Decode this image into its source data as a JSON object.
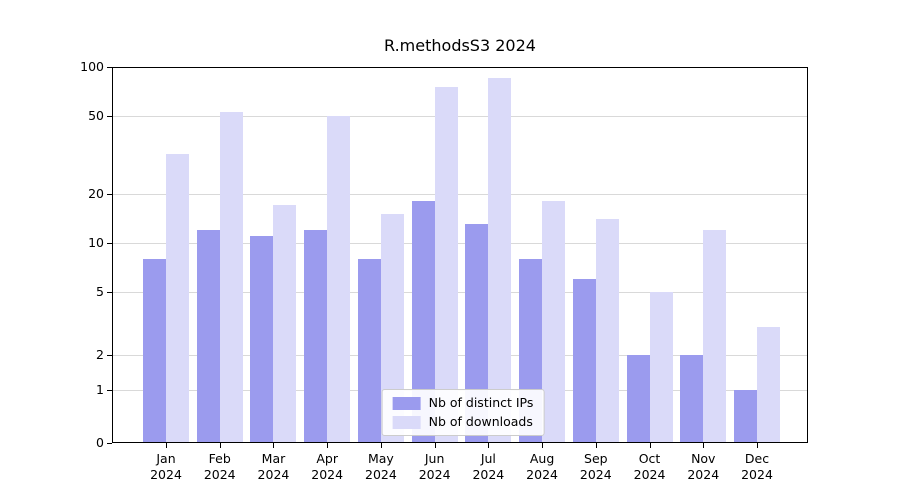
{
  "chart_data": {
    "type": "bar",
    "title": "R.methodsS3 2024",
    "categories": [
      "Jan",
      "Feb",
      "Mar",
      "Apr",
      "May",
      "Jun",
      "Jul",
      "Aug",
      "Sep",
      "Oct",
      "Nov",
      "Dec"
    ],
    "year_label": "2024",
    "series": [
      {
        "name": "Nb of distinct IPs",
        "color": "#9b9bee",
        "values": [
          8,
          12,
          11,
          12,
          8,
          18,
          13,
          8,
          6,
          2,
          2,
          1
        ]
      },
      {
        "name": "Nb of downloads",
        "color": "#dadaf9",
        "values": [
          32,
          53,
          17,
          50,
          15,
          75,
          86,
          18,
          14,
          5,
          12,
          3
        ]
      }
    ],
    "yticks": [
      0,
      1,
      2,
      5,
      10,
      20,
      50,
      100
    ],
    "ylim": [
      0,
      100
    ],
    "yscale": "log-like",
    "grid": true,
    "gridline_color": "#d9d9d9",
    "legend_position": "bottom-center",
    "background": "#ffffff"
  }
}
